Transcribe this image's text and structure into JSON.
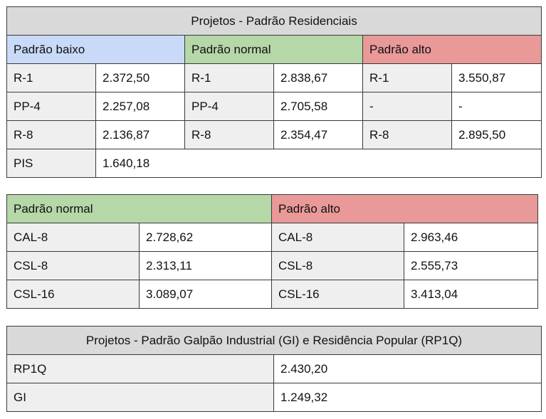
{
  "table1": {
    "title": "Projetos - Padrão Residenciais",
    "headers": [
      "Padrão baixo",
      "Padrão normal",
      "Padrão alto"
    ],
    "rows": [
      [
        "R-1",
        "2.372,50",
        "R-1",
        "2.838,67",
        "R-1",
        "3.550,87"
      ],
      [
        "PP-4",
        "2.257,08",
        "PP-4",
        "2.705,58",
        "-",
        "-"
      ],
      [
        "R-8",
        "2.136,87",
        "R-8",
        "2.354,47",
        "R-8",
        "2.895,50"
      ],
      [
        "PIS",
        "1.640,18"
      ]
    ]
  },
  "table2": {
    "headers": [
      "Padrão normal",
      "Padrão alto"
    ],
    "rows": [
      [
        "CAL-8",
        "2.728,62",
        "CAL-8",
        "2.963,46"
      ],
      [
        "CSL-8",
        "2.313,11",
        "CSL-8",
        "2.555,73"
      ],
      [
        "CSL-16",
        "3.089,07",
        "CSL-16",
        "3.413,04"
      ]
    ]
  },
  "table3": {
    "title": "Projetos - Padrão Galpão Industrial (GI) e Residência Popular (RP1Q)",
    "rows": [
      [
        "RP1Q",
        "2.430,20"
      ],
      [
        "GI",
        "1.249,32"
      ]
    ]
  }
}
